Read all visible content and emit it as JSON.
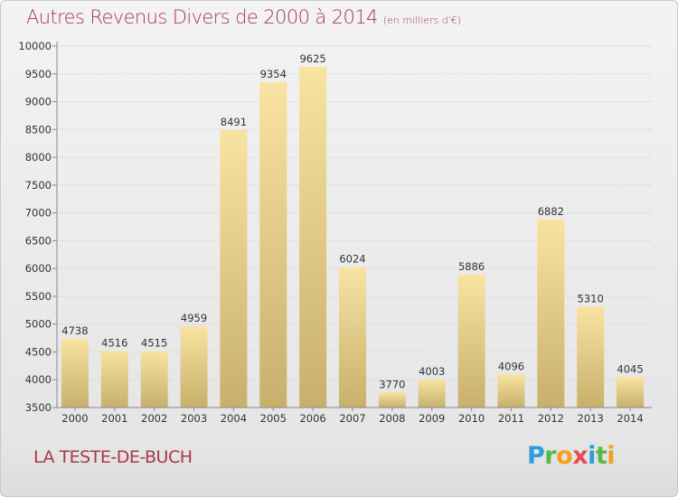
{
  "title": "Autres Revenus Divers de 2000 à 2014",
  "unit_note": "(en milliers d'€)",
  "commune": "LA TESTE-DE-BUCH",
  "brand": {
    "name": "Proxiti",
    "letters": [
      {
        "ch": "P",
        "color": "#2f9ed8"
      },
      {
        "ch": "r",
        "color": "#58b947"
      },
      {
        "ch": "o",
        "color": "#f2a01e"
      },
      {
        "ch": "x",
        "color": "#e84c4c"
      },
      {
        "ch": "i",
        "color": "#2f9ed8"
      },
      {
        "ch": "t",
        "color": "#58b947"
      },
      {
        "ch": "i",
        "color": "#f2a01e"
      }
    ]
  },
  "colors": {
    "title": "#a8384a",
    "bar_light": "#f8e3a1",
    "bar_dark": "#c8b06c",
    "grid": "#c8c8c8",
    "axis_text": "#333333"
  },
  "chart_data": {
    "type": "bar",
    "title": "Autres Revenus Divers de 2000 à 2014",
    "subtitle": "(en milliers d'€)",
    "xlabel": "",
    "ylabel": "",
    "categories": [
      "2000",
      "2001",
      "2002",
      "2003",
      "2004",
      "2005",
      "2006",
      "2007",
      "2008",
      "2009",
      "2010",
      "2011",
      "2012",
      "2013",
      "2014"
    ],
    "values": [
      4738,
      4516,
      4515,
      4959,
      8491,
      9354,
      9625,
      6024,
      3770,
      4003,
      5886,
      4096,
      6882,
      5310,
      4045
    ],
    "ylim": [
      3500,
      10000
    ],
    "yticks": [
      3500,
      4000,
      4500,
      5000,
      5500,
      6000,
      6500,
      7000,
      7500,
      8000,
      8500,
      9000,
      9500,
      10000
    ],
    "grid": true,
    "legend": "none"
  }
}
